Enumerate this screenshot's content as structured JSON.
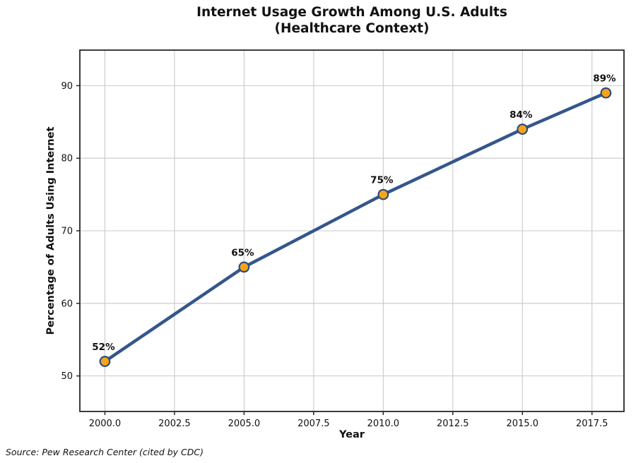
{
  "title": {
    "line1": "Internet Usage Growth Among U.S. Adults",
    "line2": "(Healthcare Context)"
  },
  "source_note": "Source: Pew Research Center (cited by CDC)",
  "chart_data": {
    "type": "line",
    "title": "Internet Usage Growth Among U.S. Adults (Healthcare Context)",
    "xlabel": "Year",
    "ylabel": "Percentage of Adults Using Internet",
    "x": [
      2000,
      2005,
      2010,
      2015,
      2018
    ],
    "values": [
      52,
      65,
      75,
      84,
      89
    ],
    "point_labels": [
      "52%",
      "65%",
      "75%",
      "84%",
      "89%"
    ],
    "xlim": [
      1999.1,
      2018.65
    ],
    "ylim": [
      45.1,
      94.9
    ],
    "xticks": [
      2000.0,
      2002.5,
      2005.0,
      2007.5,
      2010.0,
      2012.5,
      2015.0,
      2017.5
    ],
    "xtick_labels": [
      "2000.0",
      "2002.5",
      "2005.0",
      "2007.5",
      "2010.0",
      "2012.5",
      "2015.0",
      "2017.5"
    ],
    "yticks": [
      50,
      60,
      70,
      80,
      90
    ],
    "ytick_labels": [
      "50",
      "60",
      "70",
      "80",
      "90"
    ],
    "grid": true,
    "legend": "none",
    "colors": {
      "line": "#34568B",
      "marker_fill": "#F5A41B",
      "marker_edge": "#2E4B7E",
      "grid": "#C9C9C9",
      "spine": "#262626",
      "text": "#111111"
    }
  }
}
